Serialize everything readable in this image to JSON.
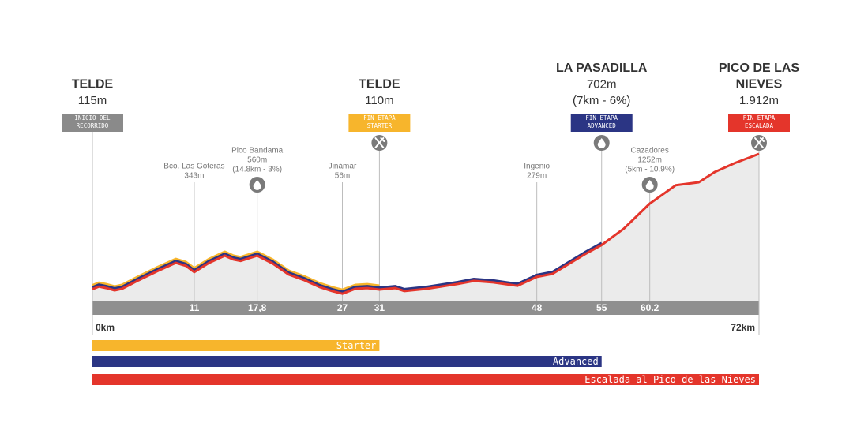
{
  "chart_data": {
    "type": "profile",
    "xlim": [
      0,
      72
    ],
    "xticks": [
      {
        "value": 0,
        "label": "0km"
      },
      {
        "value": 72,
        "label": "72km"
      }
    ],
    "x": [
      0,
      0.7,
      1.5,
      2.4,
      3.2,
      5,
      7.1,
      9,
      10.1,
      11,
      12.6,
      14.3,
      15.2,
      16,
      17.8,
      19.5,
      21.2,
      22.9,
      24.6,
      25.9,
      27,
      28.4,
      29.7,
      31,
      32.7,
      33.7,
      36.1,
      39.5,
      41.2,
      43.3,
      45.9,
      48,
      49.7,
      53.2,
      55,
      57.4,
      60.2,
      63,
      65.5,
      67.2,
      69.4,
      72
    ],
    "values": [
      115,
      150,
      130,
      100,
      120,
      235,
      360,
      465,
      425,
      343,
      465,
      560,
      510,
      490,
      560,
      455,
      310,
      235,
      140,
      90,
      56,
      120,
      130,
      110,
      130,
      90,
      120,
      185,
      225,
      205,
      160,
      279,
      320,
      580,
      702,
      920,
      1252,
      1495,
      1535,
      1670,
      1790,
      1912
    ],
    "area_color": "#ebebeb",
    "km_markers": [
      11,
      {
        "value": 17.8,
        "label": "17,8"
      },
      27,
      31,
      48,
      55,
      60.2
    ],
    "series": [
      {
        "name": "Starter",
        "color": "#f7b52c",
        "end": 31
      },
      {
        "name": "Advanced",
        "color": "#2b3584",
        "end": 55
      },
      {
        "name": "Escalada al Pico de las Nieves",
        "color": "#e4352b",
        "end": 72
      }
    ],
    "stages": [
      {
        "x": 0,
        "lines": [
          "TELDE"
        ],
        "sub": [
          "115m"
        ],
        "tag": [
          "INICIO DEL",
          "RECORRIDO"
        ],
        "tag_color": "#8a8a8a"
      },
      {
        "x": 31,
        "lines": [
          "TELDE"
        ],
        "sub": [
          "110m"
        ],
        "tag": [
          "FIN ETAPA",
          "STARTER"
        ],
        "tag_color": "#f7b52c",
        "icon": "food"
      },
      {
        "x": 55,
        "lines": [
          "LA PASADILLA"
        ],
        "sub": [
          "702m",
          "(7km - 6%)"
        ],
        "tag": [
          "FIN ETAPA",
          "ADVANCED"
        ],
        "tag_color": "#2b3584",
        "icon": "drop"
      },
      {
        "x": 72,
        "lines": [
          "PICO DE LAS",
          "NIEVES"
        ],
        "sub": [
          "1.912m"
        ],
        "tag": [
          "FIN ETAPA",
          "ESCALADA"
        ],
        "tag_color": "#e4352b",
        "icon": "food"
      }
    ],
    "points": [
      {
        "x": 11,
        "lines": [
          "Bco. Las Goteras",
          "343m"
        ]
      },
      {
        "x": 17.8,
        "lines": [
          "Pico Bandama",
          "560m",
          "(14.8km - 3%)"
        ],
        "icon": "drop"
      },
      {
        "x": 27,
        "lines": [
          "Jinámar",
          "56m"
        ]
      },
      {
        "x": 48,
        "lines": [
          "Ingenio",
          "279m"
        ]
      },
      {
        "x": 60.2,
        "lines": [
          "Cazadores",
          "1252m",
          "(5km - 10.9%)"
        ],
        "icon": "drop"
      }
    ]
  }
}
